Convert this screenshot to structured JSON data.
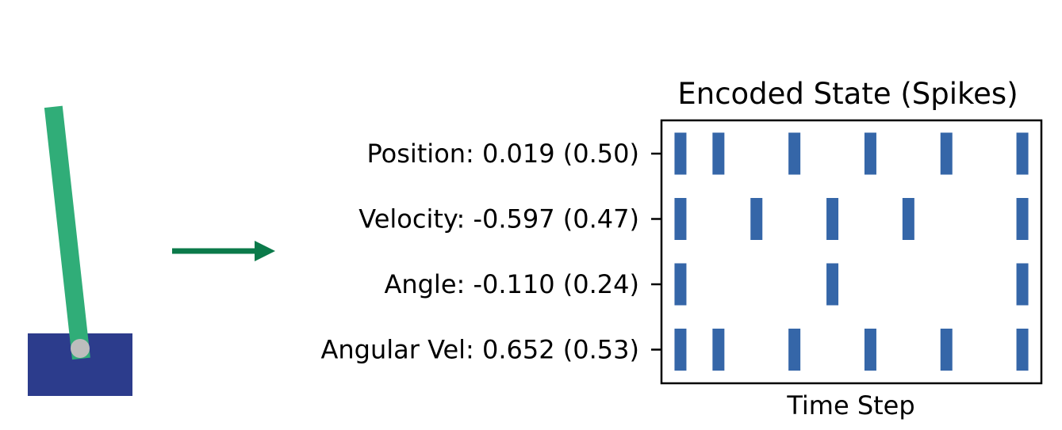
{
  "colors": {
    "cart": "#2c3c8c",
    "pole": "#30ad78",
    "pivot": "#bdbdbd",
    "arrow": "#0b7a4a",
    "spike": "#3566a8",
    "axis": "#000000"
  },
  "cartpole": {
    "pole_angle_deg": -6.3
  },
  "chart_data": {
    "type": "raster",
    "title": "Encoded State (Spikes)",
    "xlabel": "Time Step",
    "ylabel": "",
    "xlim": [
      -0.5,
      9.5
    ],
    "grid": false,
    "legend": "none",
    "rows": [
      {
        "label": "Position: 0.019 (0.50)",
        "spikes": [
          0,
          1,
          3,
          5,
          7,
          9
        ]
      },
      {
        "label": "Velocity: -0.597 (0.47)",
        "spikes": [
          0,
          2,
          4,
          6,
          9
        ]
      },
      {
        "label": "Angle: -0.110 (0.24)",
        "spikes": [
          0,
          4,
          9
        ]
      },
      {
        "label": "Angular Vel: 0.652 (0.53)",
        "spikes": [
          0,
          1,
          3,
          5,
          7,
          9
        ]
      }
    ]
  }
}
